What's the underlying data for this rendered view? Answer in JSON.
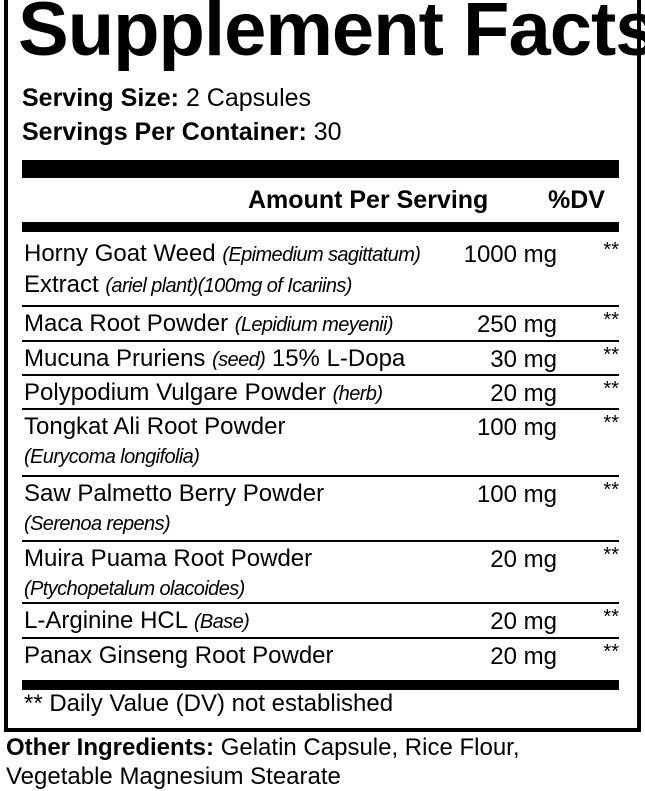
{
  "title": "Supplement Facts",
  "serving_size": {
    "label": "Serving Size:",
    "value": "2 Capsules"
  },
  "servings_per_container": {
    "label": "Servings Per Container:",
    "value": "30"
  },
  "header": {
    "amount": "Amount Per Serving",
    "dv": "%DV"
  },
  "rows": [
    {
      "name": "Horny Goat Weed",
      "note": "(Epimedium sagittatum)",
      "line2": "Extract",
      "line2_note": "(ariel plant)(100mg of Icariins)",
      "amount": "1000 mg",
      "dv": "**"
    },
    {
      "name": "Maca Root Powder",
      "note": "(Lepidium meyenii)",
      "amount": "250 mg",
      "dv": "**"
    },
    {
      "name": "Mucuna Pruriens",
      "note": "(seed)",
      "suffix": "15% L-Dopa",
      "amount": "30 mg",
      "dv": "**"
    },
    {
      "name": "Polypodium Vulgare Powder",
      "note": "(herb)",
      "amount": "20 mg",
      "dv": "**"
    },
    {
      "name": "Tongkat Ali Root Powder",
      "sub": "(Eurycoma longifolia)",
      "amount": "100 mg",
      "dv": "**"
    },
    {
      "name": "Saw Palmetto Berry Powder",
      "sub": "(Serenoa repens)",
      "amount": "100 mg",
      "dv": "**"
    },
    {
      "name": "Muira Puama Root Powder",
      "sub": "(Ptychopetalum olacoides)",
      "amount": "20 mg",
      "dv": "**"
    },
    {
      "name": "L-Arginine HCL",
      "note": "(Base)",
      "amount": "20 mg",
      "dv": "**"
    },
    {
      "name": "Panax Ginseng Root Powder",
      "amount": "20 mg",
      "dv": "**"
    }
  ],
  "footnote": "** Daily Value (DV) not established",
  "other_ingredients": {
    "label": "Other Ingredients:",
    "value": "Gelatin Capsule, Rice Flour, Vegetable Magnesium Stearate"
  }
}
